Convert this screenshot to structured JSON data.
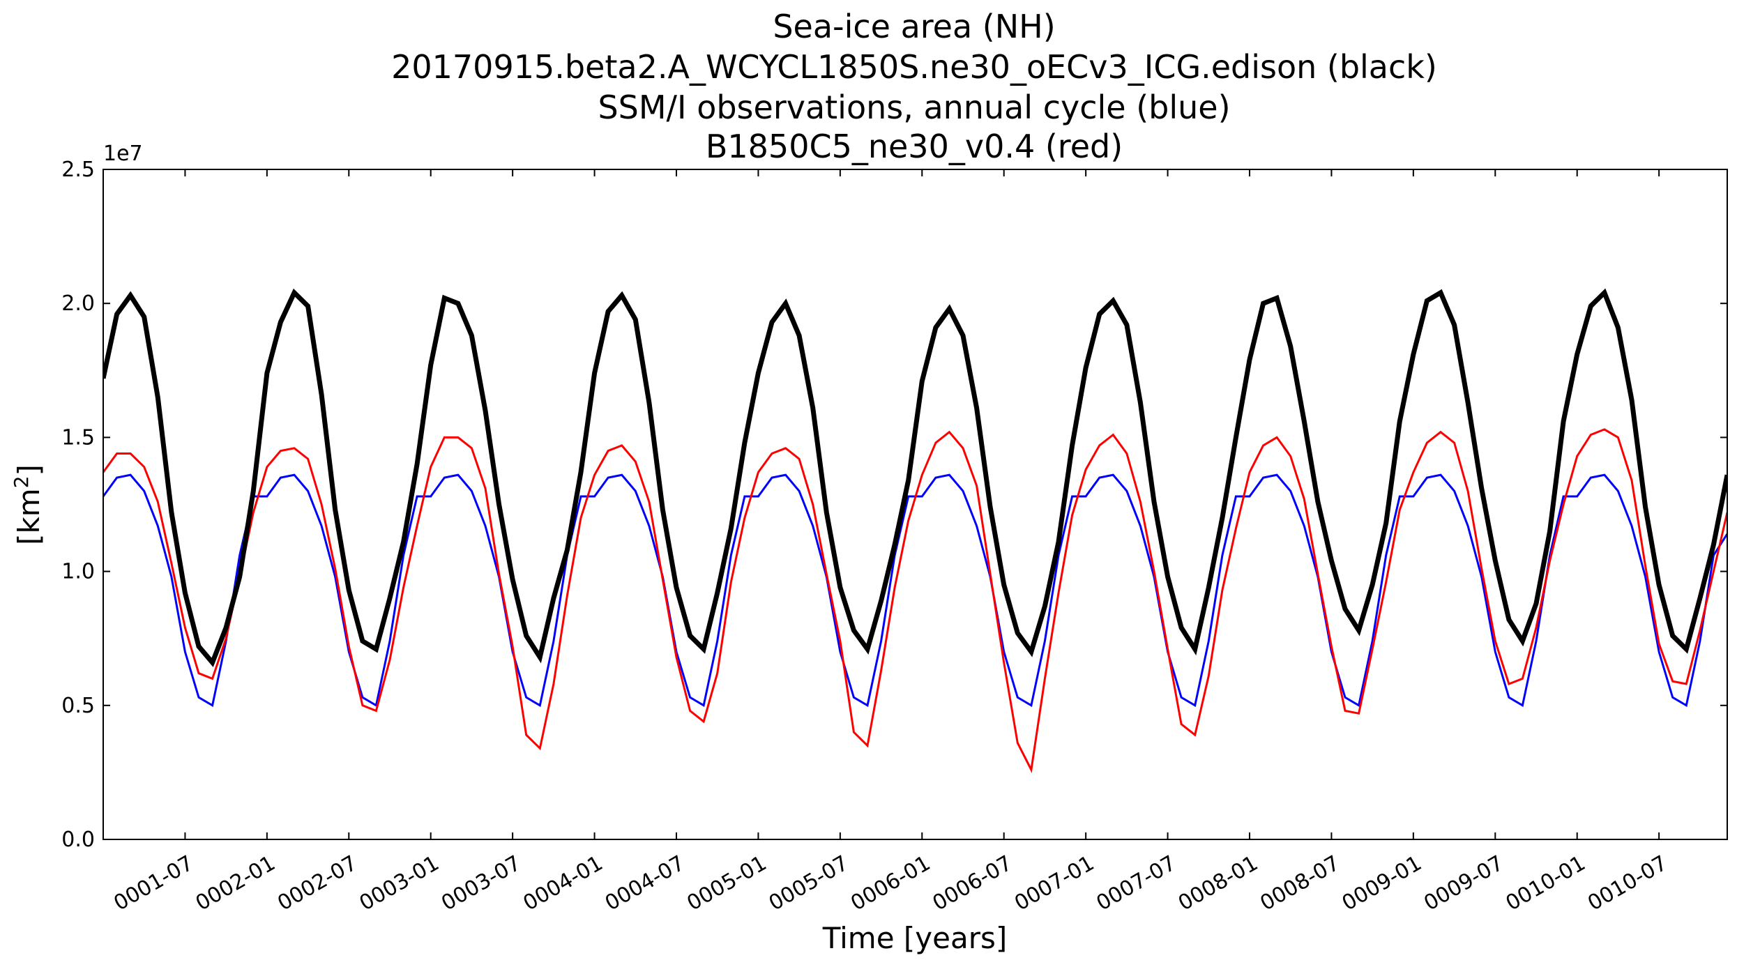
{
  "chart_data": {
    "type": "line",
    "title_lines": [
      "Sea-ice area (NH)",
      "20170915.beta2.A_WCYCL1850S.ne30_oECv3_ICG.edison (black)",
      "SSM/I observations, annual cycle (blue)",
      "B1850C5_ne30_v0.4 (red)"
    ],
    "xlabel": "Time [years]",
    "ylabel_base": "[km",
    "ylabel_sup": "2",
    "ylabel_end": "]",
    "y_offset_label": "1e7",
    "xlim": [
      "0001-01",
      "0010-12"
    ],
    "ylim": [
      0,
      2.5
    ],
    "y_ticks": [
      0.0,
      0.5,
      1.0,
      1.5,
      2.0,
      2.5
    ],
    "y_tick_labels": [
      "0.0",
      "0.5",
      "1.0",
      "1.5",
      "2.0",
      "2.5"
    ],
    "x_ticks": [
      {
        "month": 6,
        "label": "0001-07"
      },
      {
        "month": 12,
        "label": "0002-01"
      },
      {
        "month": 18,
        "label": "0002-07"
      },
      {
        "month": 24,
        "label": "0003-01"
      },
      {
        "month": 30,
        "label": "0003-07"
      },
      {
        "month": 36,
        "label": "0004-01"
      },
      {
        "month": 42,
        "label": "0004-07"
      },
      {
        "month": 48,
        "label": "0005-01"
      },
      {
        "month": 54,
        "label": "0005-07"
      },
      {
        "month": 60,
        "label": "0006-01"
      },
      {
        "month": 66,
        "label": "0006-07"
      },
      {
        "month": 72,
        "label": "0007-01"
      },
      {
        "month": 78,
        "label": "0007-07"
      },
      {
        "month": 84,
        "label": "0008-01"
      },
      {
        "month": 90,
        "label": "0008-07"
      },
      {
        "month": 96,
        "label": "0009-01"
      },
      {
        "month": 102,
        "label": "0009-07"
      },
      {
        "month": 108,
        "label": "0010-01"
      },
      {
        "month": 114,
        "label": "0010-07"
      }
    ],
    "series": [
      {
        "color": "#0000ff",
        "width": 3,
        "values": [
          1.28,
          1.35,
          1.36,
          1.3,
          1.17,
          0.98,
          0.7,
          0.53,
          0.5,
          0.74,
          1.06,
          1.28,
          1.28,
          1.35,
          1.36,
          1.3,
          1.17,
          0.98,
          0.7,
          0.53,
          0.5,
          0.74,
          1.06,
          1.28,
          1.28,
          1.35,
          1.36,
          1.3,
          1.17,
          0.98,
          0.7,
          0.53,
          0.5,
          0.74,
          1.06,
          1.28,
          1.28,
          1.35,
          1.36,
          1.3,
          1.17,
          0.98,
          0.7,
          0.53,
          0.5,
          0.74,
          1.06,
          1.28,
          1.28,
          1.35,
          1.36,
          1.3,
          1.17,
          0.98,
          0.7,
          0.53,
          0.5,
          0.74,
          1.06,
          1.28,
          1.28,
          1.35,
          1.36,
          1.3,
          1.17,
          0.98,
          0.7,
          0.53,
          0.5,
          0.74,
          1.06,
          1.28,
          1.28,
          1.35,
          1.36,
          1.3,
          1.17,
          0.98,
          0.7,
          0.53,
          0.5,
          0.74,
          1.06,
          1.28,
          1.28,
          1.35,
          1.36,
          1.3,
          1.17,
          0.98,
          0.7,
          0.53,
          0.5,
          0.74,
          1.06,
          1.28,
          1.28,
          1.35,
          1.36,
          1.3,
          1.17,
          0.98,
          0.7,
          0.53,
          0.5,
          0.74,
          1.06,
          1.28,
          1.28,
          1.35,
          1.36,
          1.3,
          1.17,
          0.98,
          0.7,
          0.53,
          0.5,
          0.74,
          1.06,
          1.14
        ]
      },
      {
        "color": "#ff0000",
        "width": 3,
        "values": [
          1.37,
          1.44,
          1.44,
          1.39,
          1.26,
          1.03,
          0.79,
          0.62,
          0.6,
          0.75,
          0.98,
          1.22,
          1.39,
          1.45,
          1.46,
          1.42,
          1.25,
          1.01,
          0.72,
          0.5,
          0.48,
          0.67,
          0.94,
          1.17,
          1.39,
          1.5,
          1.5,
          1.46,
          1.31,
          0.99,
          0.72,
          0.39,
          0.34,
          0.58,
          0.91,
          1.2,
          1.36,
          1.45,
          1.47,
          1.41,
          1.26,
          0.97,
          0.68,
          0.48,
          0.44,
          0.62,
          0.96,
          1.2,
          1.37,
          1.44,
          1.46,
          1.42,
          1.25,
          0.99,
          0.74,
          0.4,
          0.35,
          0.63,
          0.94,
          1.19,
          1.36,
          1.48,
          1.52,
          1.46,
          1.32,
          0.99,
          0.66,
          0.36,
          0.26,
          0.6,
          0.92,
          1.21,
          1.38,
          1.47,
          1.51,
          1.44,
          1.26,
          1.0,
          0.71,
          0.43,
          0.39,
          0.61,
          0.93,
          1.16,
          1.37,
          1.47,
          1.5,
          1.43,
          1.27,
          0.99,
          0.72,
          0.48,
          0.47,
          0.71,
          0.96,
          1.23,
          1.37,
          1.48,
          1.52,
          1.48,
          1.3,
          1.01,
          0.74,
          0.58,
          0.6,
          0.79,
          1.04,
          1.25,
          1.43,
          1.51,
          1.53,
          1.5,
          1.34,
          1.02,
          0.73,
          0.59,
          0.58,
          0.78,
          1.0,
          1.22
        ]
      },
      {
        "color": "#000000",
        "width": 7,
        "values": [
          1.72,
          1.96,
          2.03,
          1.95,
          1.65,
          1.22,
          0.92,
          0.72,
          0.66,
          0.79,
          0.98,
          1.3,
          1.74,
          1.93,
          2.04,
          1.99,
          1.66,
          1.23,
          0.93,
          0.74,
          0.71,
          0.9,
          1.11,
          1.4,
          1.77,
          2.02,
          2.0,
          1.88,
          1.6,
          1.25,
          0.97,
          0.76,
          0.68,
          0.9,
          1.08,
          1.37,
          1.74,
          1.97,
          2.03,
          1.94,
          1.63,
          1.23,
          0.94,
          0.76,
          0.71,
          0.92,
          1.16,
          1.48,
          1.74,
          1.93,
          2.0,
          1.88,
          1.61,
          1.22,
          0.94,
          0.78,
          0.71,
          0.89,
          1.1,
          1.34,
          1.71,
          1.91,
          1.98,
          1.88,
          1.61,
          1.24,
          0.95,
          0.77,
          0.7,
          0.87,
          1.11,
          1.47,
          1.76,
          1.96,
          2.01,
          1.92,
          1.63,
          1.26,
          0.98,
          0.79,
          0.71,
          0.94,
          1.2,
          1.5,
          1.79,
          2.0,
          2.02,
          1.84,
          1.56,
          1.26,
          1.04,
          0.86,
          0.78,
          0.95,
          1.18,
          1.56,
          1.81,
          2.01,
          2.04,
          1.92,
          1.63,
          1.31,
          1.04,
          0.82,
          0.74,
          0.88,
          1.15,
          1.56,
          1.81,
          1.99,
          2.04,
          1.91,
          1.64,
          1.24,
          0.95,
          0.76,
          0.71,
          0.9,
          1.1,
          1.36
        ]
      }
    ]
  }
}
